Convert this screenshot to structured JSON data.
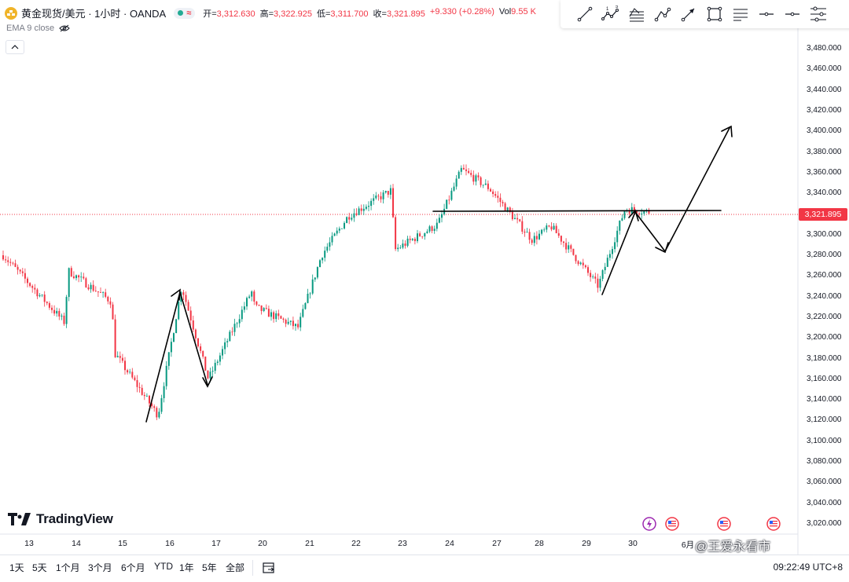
{
  "header": {
    "symbol_title": "黄金现货/美元 · 1小时 · OANDA",
    "ohlc": {
      "open_label": "开=",
      "open": "3,312.630",
      "high_label": "高=",
      "high": "3,322.925",
      "low_label": "低=",
      "low": "3,311.700",
      "close_label": "收=",
      "close": "3,321.895",
      "change": "+9.330 (+0.28%)",
      "vol_label": "Vol",
      "vol": "9.55 K"
    },
    "indicator": "EMA 9 close"
  },
  "toolbar": {
    "tools": [
      "trend-line-icon",
      "pattern-icon",
      "parallel-channel-icon",
      "path-icon",
      "arrow-icon",
      "rectangle-icon",
      "fib-icon",
      "horizontal-line-icon",
      "horizontal-ray-icon",
      "settings-icon"
    ]
  },
  "price_axis": {
    "labels": [
      "3,480.000",
      "3,460.000",
      "3,440.000",
      "3,420.000",
      "3,400.000",
      "3,380.000",
      "3,360.000",
      "3,340.000",
      "3,320.000",
      "3,300.000",
      "3,280.000",
      "3,260.000",
      "3,240.000",
      "3,220.000",
      "3,200.000",
      "3,180.000",
      "3,160.000",
      "3,140.000",
      "3,120.000",
      "3,100.000",
      "3,080.000",
      "3,060.000",
      "3,040.000",
      "3,020.000"
    ],
    "last_price": "3,321.895"
  },
  "time_axis": {
    "labels": [
      "13",
      "14",
      "15",
      "16",
      "17",
      "20",
      "21",
      "22",
      "23",
      "24",
      "27",
      "28",
      "29",
      "30",
      "6月"
    ]
  },
  "chart_data": {
    "type": "candlestick",
    "symbol": "XAUUSD",
    "timeframe": "1h",
    "ylim": [
      3010,
      3505
    ],
    "last_price": 3321.895,
    "resistance_level": 3324,
    "approx_path": [
      {
        "x": "13",
        "y": 3280
      },
      {
        "x": "13",
        "y": 3215
      },
      {
        "x": "14",
        "y": 3265
      },
      {
        "x": "14",
        "y": 3235
      },
      {
        "x": "15",
        "y": 3185
      },
      {
        "x": "15",
        "y": 3125
      },
      {
        "x": "16",
        "y": 3250
      },
      {
        "x": "17",
        "y": 3160
      },
      {
        "x": "17",
        "y": 3245
      },
      {
        "x": "20",
        "y": 3230
      },
      {
        "x": "20",
        "y": 3210
      },
      {
        "x": "21",
        "y": 3280
      },
      {
        "x": "22",
        "y": 3318
      },
      {
        "x": "22",
        "y": 3343
      },
      {
        "x": "23",
        "y": 3285
      },
      {
        "x": "23",
        "y": 3310
      },
      {
        "x": "24",
        "y": 3363
      },
      {
        "x": "27",
        "y": 3345
      },
      {
        "x": "27",
        "y": 3295
      },
      {
        "x": "28",
        "y": 3308
      },
      {
        "x": "29",
        "y": 3250
      },
      {
        "x": "30",
        "y": 3325
      },
      {
        "x": "30",
        "y": 3321.895
      }
    ]
  },
  "bottom_bar": {
    "ranges": [
      "1天",
      "5天",
      "1个月",
      "3个月",
      "6个月",
      "YTD",
      "1年",
      "5年",
      "全部"
    ],
    "clock": "09:22:49 UTC+8"
  },
  "branding": {
    "logo_text": "TradingView",
    "watermark": "@王爱永看市"
  }
}
